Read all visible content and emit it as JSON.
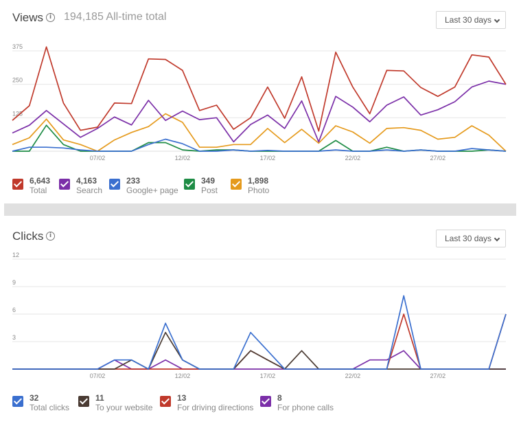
{
  "views": {
    "title": "Views",
    "total_text": "194,185 All-time total",
    "range_label": "Last 30 days",
    "legend": [
      {
        "value": "6,643",
        "label": "Total",
        "color": "#c0392b"
      },
      {
        "value": "4,163",
        "label": "Search",
        "color": "#7b2fa8"
      },
      {
        "value": "233",
        "label": "Google+ page",
        "color": "#3a6fcf"
      },
      {
        "value": "349",
        "label": "Post",
        "color": "#1e8c45"
      },
      {
        "value": "1,898",
        "label": "Photo",
        "color": "#e59a1c"
      }
    ],
    "chart_data": {
      "type": "line",
      "x": [
        "02/02",
        "03/02",
        "04/02",
        "05/02",
        "06/02",
        "07/02",
        "08/02",
        "09/02",
        "10/02",
        "11/02",
        "12/02",
        "13/02",
        "14/02",
        "15/02",
        "16/02",
        "17/02",
        "18/02",
        "19/02",
        "20/02",
        "21/02",
        "22/02",
        "23/02",
        "24/02",
        "25/02",
        "26/02",
        "27/02",
        "28/02",
        "01/03",
        "02/03",
        "03/03"
      ],
      "x_ticks": [
        "07/02",
        "12/02",
        "17/02",
        "22/02",
        "27/02"
      ],
      "y_ticks": [
        125,
        250,
        375
      ],
      "ylim": [
        0,
        375
      ],
      "series": [
        {
          "name": "Total",
          "color": "#c0392b",
          "values": [
            115,
            170,
            390,
            180,
            78,
            90,
            180,
            178,
            345,
            343,
            302,
            152,
            172,
            82,
            125,
            240,
            123,
            278,
            75,
            370,
            240,
            140,
            302,
            300,
            238,
            205,
            240,
            360,
            352,
            250
          ]
        },
        {
          "name": "Search",
          "color": "#7b2fa8",
          "values": [
            68,
            97,
            152,
            102,
            52,
            85,
            128,
            98,
            190,
            115,
            150,
            118,
            125,
            35,
            100,
            135,
            85,
            188,
            35,
            205,
            165,
            110,
            172,
            203,
            135,
            155,
            185,
            240,
            262,
            250
          ]
        },
        {
          "name": "Google+ page",
          "color": "#3a6fcf",
          "values": [
            0,
            15,
            15,
            12,
            5,
            0,
            0,
            0,
            25,
            45,
            28,
            0,
            0,
            5,
            0,
            3,
            0,
            0,
            0,
            5,
            0,
            0,
            5,
            0,
            5,
            0,
            0,
            10,
            5,
            0
          ]
        },
        {
          "name": "Post",
          "color": "#1e8c45",
          "values": [
            0,
            0,
            97,
            25,
            0,
            0,
            0,
            0,
            32,
            32,
            5,
            0,
            5,
            5,
            0,
            0,
            0,
            0,
            0,
            40,
            0,
            0,
            15,
            0,
            5,
            0,
            0,
            0,
            5,
            0
          ]
        },
        {
          "name": "Photo",
          "color": "#e59a1c",
          "values": [
            25,
            50,
            120,
            42,
            25,
            0,
            42,
            70,
            92,
            140,
            108,
            15,
            15,
            25,
            25,
            85,
            32,
            82,
            30,
            95,
            72,
            30,
            85,
            88,
            78,
            45,
            52,
            95,
            60,
            0
          ]
        }
      ]
    }
  },
  "clicks": {
    "title": "Clicks",
    "range_label": "Last 30 days",
    "legend": [
      {
        "value": "32",
        "label": "Total clicks",
        "color": "#3a6fcf"
      },
      {
        "value": "11",
        "label": "To your website",
        "color": "#4a3b33"
      },
      {
        "value": "13",
        "label": "For driving directions",
        "color": "#c0392b"
      },
      {
        "value": "8",
        "label": "For phone calls",
        "color": "#7b2fa8"
      }
    ],
    "chart_data": {
      "type": "line",
      "x": [
        "02/02",
        "03/02",
        "04/02",
        "05/02",
        "06/02",
        "07/02",
        "08/02",
        "09/02",
        "10/02",
        "11/02",
        "12/02",
        "13/02",
        "14/02",
        "15/02",
        "16/02",
        "17/02",
        "18/02",
        "19/02",
        "20/02",
        "21/02",
        "22/02",
        "23/02",
        "24/02",
        "25/02",
        "26/02",
        "27/02",
        "28/02",
        "01/03",
        "02/03",
        "03/03"
      ],
      "x_ticks": [
        "07/02",
        "12/02",
        "17/02",
        "22/02",
        "27/02"
      ],
      "y_ticks": [
        3,
        6,
        9,
        12
      ],
      "ylim": [
        0,
        12
      ],
      "series": [
        {
          "name": "Total clicks",
          "color": "#3a6fcf",
          "values": [
            0,
            0,
            0,
            0,
            0,
            0,
            1,
            1,
            0,
            5,
            1,
            0,
            0,
            0,
            4,
            2,
            0,
            0,
            0,
            0,
            0,
            0,
            0,
            8,
            0,
            0,
            0,
            0,
            0,
            6
          ]
        },
        {
          "name": "To your website",
          "color": "#4a3b33",
          "values": [
            0,
            0,
            0,
            0,
            0,
            0,
            0,
            1,
            0,
            4,
            1,
            0,
            0,
            0,
            2,
            1,
            0,
            2,
            0,
            0,
            0,
            0,
            0,
            0,
            0,
            0,
            0,
            0,
            0,
            0
          ]
        },
        {
          "name": "For driving directions",
          "color": "#c0392b",
          "values": [
            0,
            0,
            0,
            0,
            0,
            0,
            0,
            0,
            0,
            0,
            0,
            0,
            0,
            0,
            2,
            1,
            0,
            0,
            0,
            0,
            0,
            0,
            0,
            6,
            0,
            0,
            0,
            0,
            0,
            6
          ]
        },
        {
          "name": "For phone calls",
          "color": "#7b2fa8",
          "values": [
            0,
            0,
            0,
            0,
            0,
            0,
            1,
            0,
            0,
            1,
            0,
            0,
            0,
            0,
            0,
            0,
            0,
            0,
            0,
            0,
            0,
            1,
            1,
            2,
            0,
            0,
            0,
            0,
            0,
            0
          ]
        }
      ]
    }
  }
}
